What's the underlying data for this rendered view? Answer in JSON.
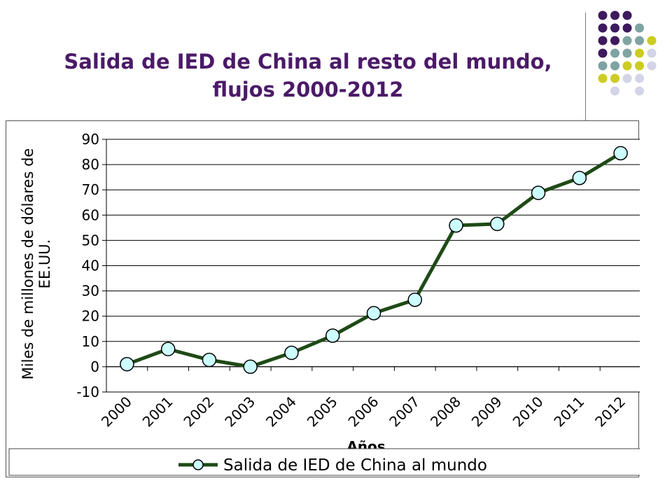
{
  "title": {
    "line1": "Salida de IED de China al resto del mundo,",
    "line2": "flujos 2000-2012"
  },
  "colors": {
    "title": "#4b1a68",
    "line": "#1e4a16",
    "marker_fill": "#ccffff",
    "marker_stroke": "#000000",
    "dot_purple": "#3d1a5e",
    "dot_teal": "#7fa3a3",
    "dot_olive": "#cccc22",
    "dot_lavender": "#d4d4e8"
  },
  "decoration": {
    "dots": [
      [
        "purple",
        "purple",
        "purple",
        "none",
        "none"
      ],
      [
        "purple",
        "purple",
        "purple",
        "teal",
        "none"
      ],
      [
        "purple",
        "purple",
        "teal",
        "teal",
        "olive"
      ],
      [
        "purple",
        "teal",
        "teal",
        "olive",
        "lavender"
      ],
      [
        "teal",
        "teal",
        "olive",
        "olive",
        "lavender"
      ],
      [
        "olive",
        "olive",
        "lavender",
        "lavender",
        "none"
      ],
      [
        "none",
        "lavender",
        "none",
        "lavender",
        "none"
      ]
    ]
  },
  "chart_data": {
    "type": "line",
    "title": "",
    "xlabel": "Años",
    "ylabel_lines": [
      "Miles de millones de dólares de",
      "EE.UU."
    ],
    "categories": [
      "2000",
      "2001",
      "2002",
      "2003",
      "2004",
      "2005",
      "2006",
      "2007",
      "2008",
      "2009",
      "2010",
      "2011",
      "2012"
    ],
    "series": [
      {
        "name": "Salida de IED de China al mundo",
        "values": [
          1,
          7,
          2.7,
          0,
          5.5,
          12.3,
          21.2,
          26.5,
          55.9,
          56.5,
          68.8,
          74.7,
          84.5
        ]
      }
    ],
    "ylim": [
      -10,
      90
    ],
    "yticks": [
      "-10",
      "0",
      "10",
      "20",
      "30",
      "40",
      "50",
      "60",
      "70",
      "80",
      "90"
    ],
    "grid": true,
    "legend_position": "bottom"
  }
}
